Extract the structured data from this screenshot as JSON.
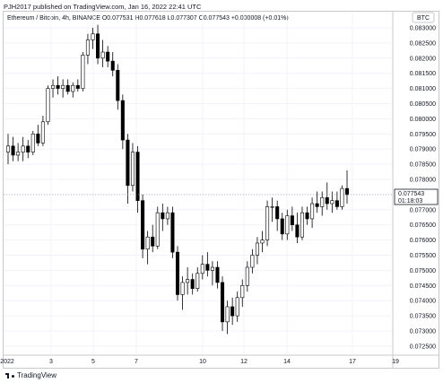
{
  "header": {
    "published_text": "PJH2017 published on TradingView.com, Jan 16, 2022 22:41 UTC"
  },
  "symbol_line": "Ethereum / Bitcoin, 4h, BINANCE  O0.077531  H0.077618  L0.077307  C0.077543  +0.000008 (+0.01%)",
  "currency_badge": "BTC",
  "last_price_label": "0.077543",
  "countdown_label": "01:18:03",
  "footer": {
    "brand": "TradingView",
    "logo_icon": "tradingview-logo-icon"
  },
  "colors": {
    "up_body": "#ffffff",
    "down_body": "#000000",
    "wick": "#000000",
    "grid": "#f0f3fa",
    "axis_text": "#131722",
    "border": "#c9c9c9"
  },
  "chart_data": {
    "type": "candlestick",
    "title": "Ethereum / Bitcoin, 4h, BINANCE",
    "xlabel": "",
    "ylabel": "",
    "grid": true,
    "x_ticks": [
      "2022",
      "3",
      "5",
      "7",
      "10",
      "12",
      "14",
      "17",
      "19"
    ],
    "y_ticks": [
      "0.083000",
      "0.082500",
      "0.082000",
      "0.081500",
      "0.081000",
      "0.080500",
      "0.080000",
      "0.079500",
      "0.079000",
      "0.078500",
      "0.078000",
      "0.077500",
      "0.077000",
      "0.076500",
      "0.076000",
      "0.075500",
      "0.075000",
      "0.074500",
      "0.074000",
      "0.073500",
      "0.073000",
      "0.072500"
    ],
    "ylim": [
      0.0723,
      0.0834
    ],
    "candles": [
      {
        "o": 0.0789,
        "h": 0.0795,
        "l": 0.0785,
        "c": 0.0791
      },
      {
        "o": 0.0791,
        "h": 0.0794,
        "l": 0.0786,
        "c": 0.0788
      },
      {
        "o": 0.0788,
        "h": 0.0792,
        "l": 0.0786,
        "c": 0.0789
      },
      {
        "o": 0.0789,
        "h": 0.0794,
        "l": 0.0786,
        "c": 0.0791
      },
      {
        "o": 0.0791,
        "h": 0.0793,
        "l": 0.0787,
        "c": 0.0789
      },
      {
        "o": 0.0789,
        "h": 0.0796,
        "l": 0.0788,
        "c": 0.0795
      },
      {
        "o": 0.0795,
        "h": 0.0798,
        "l": 0.0791,
        "c": 0.0792
      },
      {
        "o": 0.0792,
        "h": 0.0801,
        "l": 0.0791,
        "c": 0.0799
      },
      {
        "o": 0.0799,
        "h": 0.0811,
        "l": 0.0798,
        "c": 0.081
      },
      {
        "o": 0.081,
        "h": 0.0813,
        "l": 0.0807,
        "c": 0.0811
      },
      {
        "o": 0.0811,
        "h": 0.0814,
        "l": 0.0808,
        "c": 0.081
      },
      {
        "o": 0.081,
        "h": 0.0813,
        "l": 0.0807,
        "c": 0.0811
      },
      {
        "o": 0.0811,
        "h": 0.0813,
        "l": 0.0808,
        "c": 0.0809
      },
      {
        "o": 0.0809,
        "h": 0.0812,
        "l": 0.0807,
        "c": 0.0811
      },
      {
        "o": 0.0811,
        "h": 0.0813,
        "l": 0.0809,
        "c": 0.081
      },
      {
        "o": 0.081,
        "h": 0.0822,
        "l": 0.0809,
        "c": 0.0821
      },
      {
        "o": 0.0821,
        "h": 0.0828,
        "l": 0.0818,
        "c": 0.0826
      },
      {
        "o": 0.0826,
        "h": 0.083,
        "l": 0.0823,
        "c": 0.0828
      },
      {
        "o": 0.0828,
        "h": 0.0831,
        "l": 0.0818,
        "c": 0.082
      },
      {
        "o": 0.082,
        "h": 0.0826,
        "l": 0.0817,
        "c": 0.0822
      },
      {
        "o": 0.0822,
        "h": 0.0824,
        "l": 0.0817,
        "c": 0.0819
      },
      {
        "o": 0.0819,
        "h": 0.0822,
        "l": 0.0814,
        "c": 0.0816
      },
      {
        "o": 0.0816,
        "h": 0.0818,
        "l": 0.0803,
        "c": 0.0806
      },
      {
        "o": 0.0806,
        "h": 0.0808,
        "l": 0.079,
        "c": 0.0793
      },
      {
        "o": 0.0793,
        "h": 0.0795,
        "l": 0.0772,
        "c": 0.0778
      },
      {
        "o": 0.0778,
        "h": 0.0792,
        "l": 0.0776,
        "c": 0.0789
      },
      {
        "o": 0.0789,
        "h": 0.0791,
        "l": 0.0769,
        "c": 0.0773
      },
      {
        "o": 0.0773,
        "h": 0.0775,
        "l": 0.0754,
        "c": 0.0757
      },
      {
        "o": 0.0757,
        "h": 0.0763,
        "l": 0.0752,
        "c": 0.0761
      },
      {
        "o": 0.0761,
        "h": 0.0765,
        "l": 0.0756,
        "c": 0.0758
      },
      {
        "o": 0.0758,
        "h": 0.0771,
        "l": 0.0757,
        "c": 0.0769
      },
      {
        "o": 0.0769,
        "h": 0.0772,
        "l": 0.0763,
        "c": 0.0767
      },
      {
        "o": 0.0767,
        "h": 0.0771,
        "l": 0.0765,
        "c": 0.0769
      },
      {
        "o": 0.0769,
        "h": 0.0771,
        "l": 0.0754,
        "c": 0.0756
      },
      {
        "o": 0.0756,
        "h": 0.0758,
        "l": 0.074,
        "c": 0.0742
      },
      {
        "o": 0.0742,
        "h": 0.0748,
        "l": 0.0737,
        "c": 0.0746
      },
      {
        "o": 0.0746,
        "h": 0.0751,
        "l": 0.0742,
        "c": 0.0747
      },
      {
        "o": 0.0747,
        "h": 0.0749,
        "l": 0.0742,
        "c": 0.0744
      },
      {
        "o": 0.0744,
        "h": 0.0751,
        "l": 0.0743,
        "c": 0.0749
      },
      {
        "o": 0.0749,
        "h": 0.0755,
        "l": 0.0747,
        "c": 0.0752
      },
      {
        "o": 0.0752,
        "h": 0.0756,
        "l": 0.0748,
        "c": 0.075
      },
      {
        "o": 0.075,
        "h": 0.0753,
        "l": 0.0745,
        "c": 0.0751
      },
      {
        "o": 0.0751,
        "h": 0.0753,
        "l": 0.0744,
        "c": 0.0746
      },
      {
        "o": 0.0746,
        "h": 0.0748,
        "l": 0.073,
        "c": 0.0733
      },
      {
        "o": 0.0733,
        "h": 0.074,
        "l": 0.0729,
        "c": 0.0738
      },
      {
        "o": 0.0738,
        "h": 0.0741,
        "l": 0.0732,
        "c": 0.0735
      },
      {
        "o": 0.0735,
        "h": 0.0743,
        "l": 0.0733,
        "c": 0.0741
      },
      {
        "o": 0.0741,
        "h": 0.0747,
        "l": 0.0738,
        "c": 0.0745
      },
      {
        "o": 0.0745,
        "h": 0.0753,
        "l": 0.0743,
        "c": 0.0751
      },
      {
        "o": 0.0751,
        "h": 0.0757,
        "l": 0.0749,
        "c": 0.0755
      },
      {
        "o": 0.0755,
        "h": 0.0761,
        "l": 0.0752,
        "c": 0.0759
      },
      {
        "o": 0.0759,
        "h": 0.0763,
        "l": 0.0756,
        "c": 0.076
      },
      {
        "o": 0.076,
        "h": 0.0773,
        "l": 0.0758,
        "c": 0.0771
      },
      {
        "o": 0.0771,
        "h": 0.0774,
        "l": 0.0766,
        "c": 0.0771
      },
      {
        "o": 0.0771,
        "h": 0.0773,
        "l": 0.0763,
        "c": 0.0767
      },
      {
        "o": 0.0767,
        "h": 0.0769,
        "l": 0.076,
        "c": 0.0762
      },
      {
        "o": 0.0762,
        "h": 0.077,
        "l": 0.076,
        "c": 0.0768
      },
      {
        "o": 0.0768,
        "h": 0.0771,
        "l": 0.0763,
        "c": 0.0765
      },
      {
        "o": 0.0765,
        "h": 0.0769,
        "l": 0.0759,
        "c": 0.0761
      },
      {
        "o": 0.0761,
        "h": 0.0771,
        "l": 0.076,
        "c": 0.0769
      },
      {
        "o": 0.0769,
        "h": 0.0771,
        "l": 0.0765,
        "c": 0.0767
      },
      {
        "o": 0.0767,
        "h": 0.0774,
        "l": 0.0764,
        "c": 0.0772
      },
      {
        "o": 0.0772,
        "h": 0.0776,
        "l": 0.0769,
        "c": 0.0771
      },
      {
        "o": 0.0771,
        "h": 0.0776,
        "l": 0.0768,
        "c": 0.0774
      },
      {
        "o": 0.0774,
        "h": 0.0779,
        "l": 0.077,
        "c": 0.0772
      },
      {
        "o": 0.0772,
        "h": 0.0776,
        "l": 0.0769,
        "c": 0.0773
      },
      {
        "o": 0.0773,
        "h": 0.0776,
        "l": 0.077,
        "c": 0.0771
      },
      {
        "o": 0.0771,
        "h": 0.0778,
        "l": 0.077,
        "c": 0.0777
      },
      {
        "o": 0.0777,
        "h": 0.0783,
        "l": 0.0772,
        "c": 0.0775
      }
    ]
  }
}
